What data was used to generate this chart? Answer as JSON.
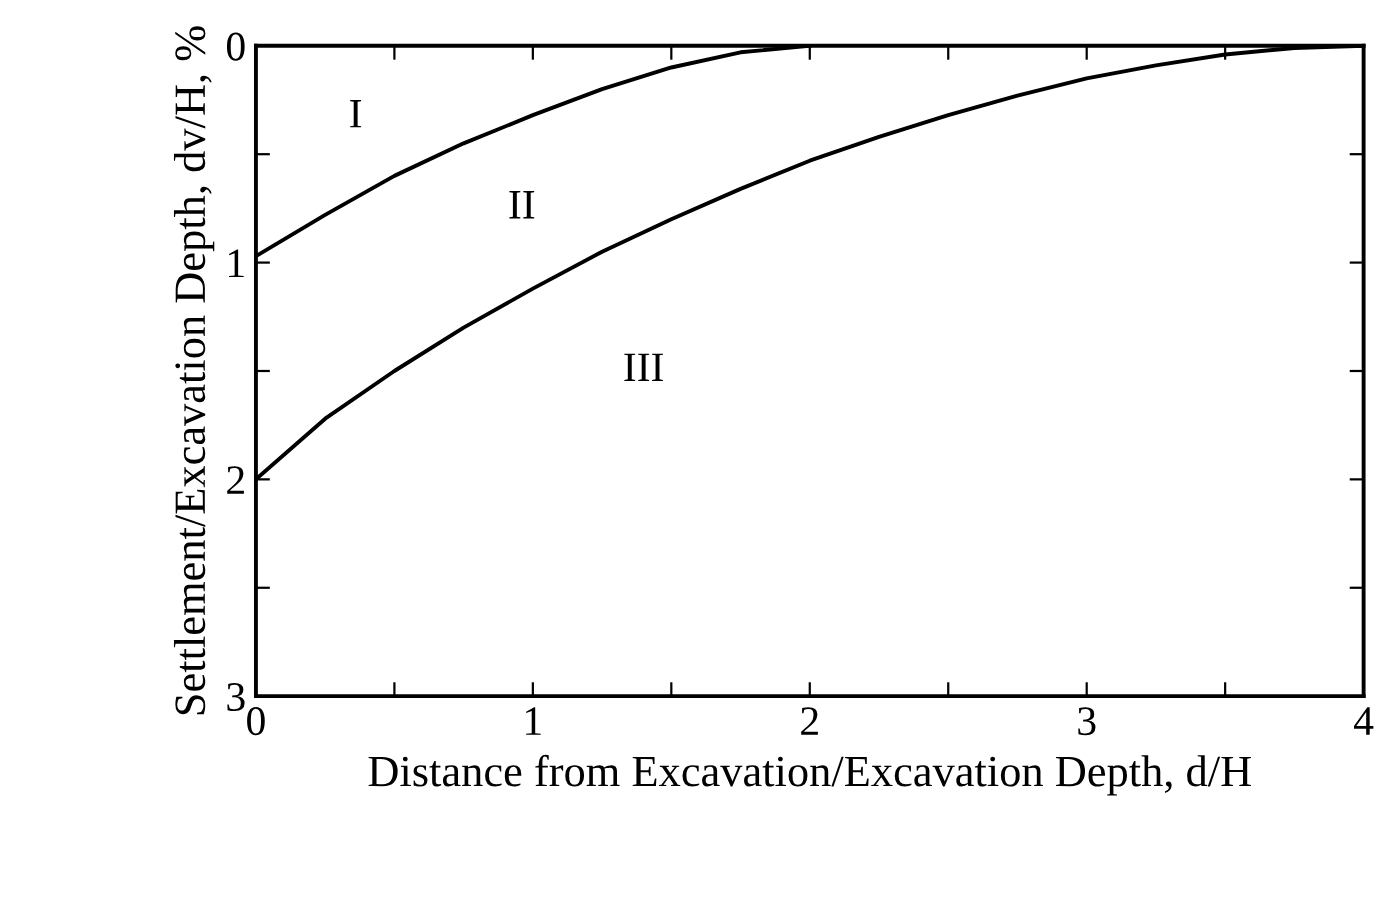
{
  "chart_data": {
    "type": "line",
    "xlabel": "Distance from Excavation/Excavation Depth, d/H",
    "ylabel": "Settlement/Excavation Depth, dv/H, %",
    "xlim": [
      0,
      4
    ],
    "ylim": [
      3,
      0
    ],
    "xticks": [
      0,
      {
        "value": 0.5,
        "label": null
      },
      1,
      {
        "value": 1.5,
        "label": null
      },
      2,
      {
        "value": 2.5,
        "label": null
      },
      3,
      {
        "value": 3.5,
        "label": null
      },
      4
    ],
    "yticks": [
      0,
      {
        "value": 0.5,
        "label": null
      },
      1,
      {
        "value": 1.5,
        "label": null
      },
      2,
      {
        "value": 2.5,
        "label": null
      },
      3
    ],
    "grid": false,
    "marker": "none",
    "line_style": "solid",
    "series": [
      {
        "color": "#000000",
        "x": [
          0,
          0.25,
          0.5,
          0.75,
          1,
          1.25,
          1.5,
          1.75,
          2
        ],
        "values": [
          0.97,
          0.78,
          0.6,
          0.45,
          0.32,
          0.2,
          0.1,
          0.03,
          0
        ]
      },
      {
        "color": "#000000",
        "x": [
          0,
          0.25,
          0.5,
          0.75,
          1,
          1.25,
          1.5,
          1.75,
          2,
          2.25,
          2.5,
          2.75,
          3,
          3.25,
          3.5,
          3.75,
          4
        ],
        "values": [
          2.0,
          1.72,
          1.5,
          1.3,
          1.12,
          0.95,
          0.8,
          0.66,
          0.53,
          0.42,
          0.32,
          0.23,
          0.15,
          0.09,
          0.04,
          0.01,
          0
        ]
      }
    ],
    "annotations": [
      "I",
      "II",
      "III"
    ]
  }
}
